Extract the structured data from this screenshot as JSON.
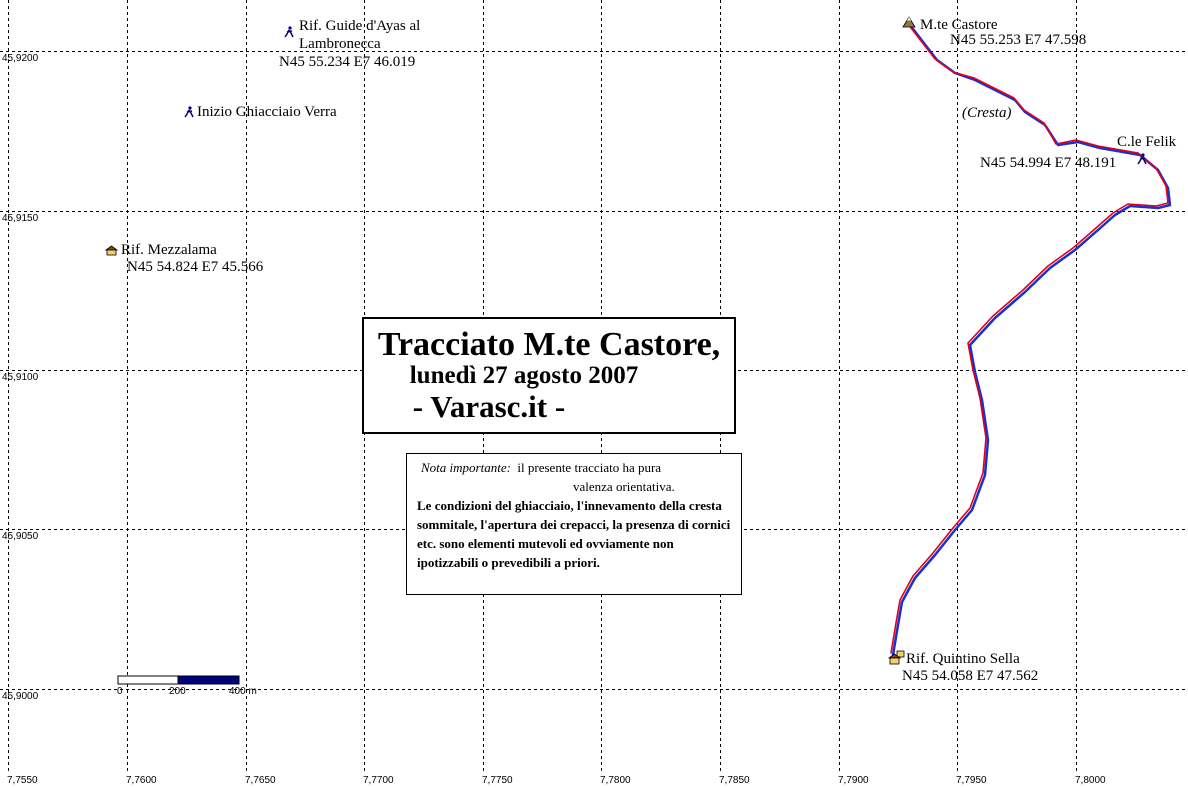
{
  "map": {
    "x_ticks": [
      "7,7550",
      "7,7600",
      "7,7650",
      "7,7700",
      "7,7750",
      "7,7800",
      "7,7850",
      "7,7900",
      "7,7950",
      "7,8000"
    ],
    "y_ticks": [
      "45,9200",
      "45,9150",
      "45,9100",
      "45,9050",
      "45,9000"
    ]
  },
  "waypoints": [
    {
      "name": "Rif. Guide d'Ayas al",
      "name2": "Lambronecca",
      "coords": "N45 55.234 E7 46.019",
      "icon": "climber-icon"
    },
    {
      "name": "Inizio Ghiacciaio Verra",
      "coords": "",
      "icon": "climber-icon"
    },
    {
      "name": "Rif. Mezzalama",
      "coords": "N45 54.824 E7 45.566",
      "icon": "hut-icon"
    },
    {
      "name": "M.te Castore",
      "coords": "N45 55.253 E7 47.598",
      "icon": "summit-icon"
    },
    {
      "name": "C.le Felik",
      "coords": "N45 54.994 E7 48.191",
      "icon": "climber-icon"
    },
    {
      "name": "Rif. Quintino Sella",
      "coords": "N45 54.058 E7 47.562",
      "icon": "hut-icon"
    }
  ],
  "annotation": "(Cresta)",
  "title": {
    "line1": "Tracciato M.te Castore,",
    "line2": "lunedì 27 agosto 2007",
    "line3": "- Varasc.it -"
  },
  "note": {
    "label": "Nota importante:",
    "line1": "il presente tracciato ha pura",
    "line2": "valenza orientativa.",
    "body": "Le condizioni del ghiacciaio, l'innevamento della cresta sommitale, l'apertura dei crepacci, la presenza di cornici etc. sono elementi mutevoli ed ovviamente non ipotizzabili o prevedibili a priori."
  },
  "scale": {
    "labels": [
      "0",
      "200",
      "400 m"
    ]
  },
  "colors": {
    "track": "#e0001b",
    "track_shadow": "#1a2fd0",
    "scale_fill": "#000080",
    "grid": "#000000"
  }
}
